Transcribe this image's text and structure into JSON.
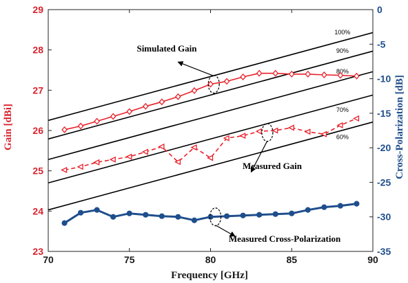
{
  "chart_data": {
    "type": "line",
    "xlabel": "Frequency [GHz]",
    "ylabel_left": "Gain [dBi]",
    "ylabel_right": "Cross-Polarization [dB]",
    "xlim": [
      70,
      90
    ],
    "ylim_left": [
      23,
      29
    ],
    "ylim_right": [
      -35,
      0
    ],
    "x_ticks": [
      "70",
      "75",
      "80",
      "85",
      "90"
    ],
    "y_ticks_left": [
      "23",
      "24",
      "25",
      "26",
      "27",
      "28",
      "29"
    ],
    "y_ticks_right": [
      "0",
      "-5",
      "-10",
      "-15",
      "-20",
      "-25",
      "-30",
      "-35"
    ],
    "colors": {
      "gain": "#e8202a",
      "xpol": "#1f4e8c",
      "efficiency": "#000000"
    },
    "efficiency_lines": [
      {
        "label": "100%",
        "x": [
          70,
          90
        ],
        "y": [
          26.25,
          28.43
        ]
      },
      {
        "label": "90%",
        "x": [
          70,
          90
        ],
        "y": [
          25.79,
          27.97
        ]
      },
      {
        "label": "80%",
        "x": [
          70,
          90
        ],
        "y": [
          25.28,
          27.46
        ]
      },
      {
        "label": "70%",
        "x": [
          70,
          90
        ],
        "y": [
          24.7,
          26.88
        ]
      },
      {
        "label": "60%",
        "x": [
          70,
          90
        ],
        "y": [
          24.03,
          26.21
        ]
      }
    ],
    "series": [
      {
        "name": "Simulated Gain",
        "axis": "left",
        "style": "solid-diamond",
        "x": [
          71,
          72,
          73,
          74,
          75,
          76,
          77,
          78,
          79,
          80,
          81,
          82,
          83,
          84,
          85,
          86,
          87,
          88,
          89
        ],
        "y": [
          26.02,
          26.11,
          26.23,
          26.35,
          26.47,
          26.6,
          26.71,
          26.84,
          26.99,
          27.15,
          27.22,
          27.33,
          27.42,
          27.42,
          27.4,
          27.4,
          27.38,
          27.37,
          27.35
        ]
      },
      {
        "name": "Measured Gain",
        "axis": "left",
        "style": "dashed-triangle",
        "x": [
          71,
          72,
          73,
          74,
          75,
          76,
          77,
          78,
          79,
          80,
          81,
          82,
          83,
          84,
          85,
          86,
          87,
          88,
          89
        ],
        "y": [
          25.02,
          25.1,
          25.21,
          25.28,
          25.35,
          25.47,
          25.6,
          25.22,
          25.58,
          25.32,
          25.81,
          25.87,
          25.98,
          26.0,
          26.07,
          25.97,
          25.91,
          26.13,
          26.3
        ]
      },
      {
        "name": "Measured Cross-Polarization",
        "axis": "right",
        "style": "solid-circle",
        "x": [
          71,
          72,
          73,
          74,
          75,
          76,
          77,
          78,
          79,
          80,
          81,
          82,
          83,
          84,
          85,
          86,
          87,
          88,
          89
        ],
        "y": [
          -30.9,
          -29.4,
          -29.0,
          -30.0,
          -29.5,
          -29.7,
          -29.9,
          -30.0,
          -30.5,
          -30.0,
          -29.9,
          -29.8,
          -29.7,
          -29.6,
          -29.5,
          -29.0,
          -28.6,
          -28.4,
          -28.1
        ]
      }
    ],
    "annotations": [
      {
        "text": "Simulated Gain",
        "ellipse_at": [
          80.2,
          27.15
        ],
        "arrow_to": [
          78,
          27.7
        ]
      },
      {
        "text": "Measured Gain",
        "ellipse_at": [
          83.5,
          25.95
        ],
        "arrow_to": [
          82.5,
          24.97
        ]
      },
      {
        "text": "Measured Cross-Polarization",
        "ellipse_at": [
          80.3,
          -30.0
        ],
        "arrow_to": [
          81.5,
          -32.8
        ]
      }
    ]
  }
}
